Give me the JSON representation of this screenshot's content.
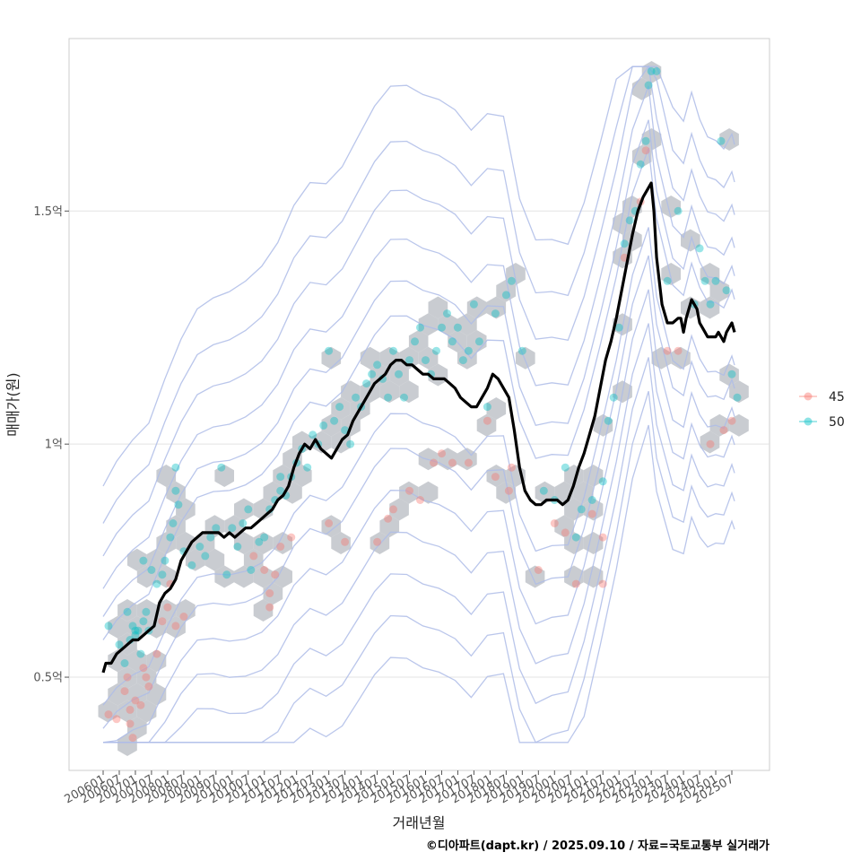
{
  "chart_data": {
    "type": "scatter",
    "xlabel": "거래년월",
    "ylabel": "매매가(원)",
    "caption": "©디아파트(dapt.kr) / 2025.09.10 / 자료=국토교통부 실거래가",
    "ylim": [
      0.3,
      1.87
    ],
    "y_ticks": [
      {
        "value": 0.5,
        "label": "0.5억"
      },
      {
        "value": 1.0,
        "label": "1억"
      },
      {
        "value": 1.5,
        "label": "1.5억"
      }
    ],
    "x_range_months": [
      0,
      236
    ],
    "x_ticks": [
      "200601",
      "200607",
      "200701",
      "200707",
      "200801",
      "200807",
      "200901",
      "200907",
      "201001",
      "201007",
      "201101",
      "201107",
      "201201",
      "201207",
      "201301",
      "201307",
      "201401",
      "201407",
      "201501",
      "201507",
      "201601",
      "201607",
      "201701",
      "201707",
      "201801",
      "201807",
      "201901",
      "201907",
      "202001",
      "202007",
      "202101",
      "202107",
      "202201",
      "202207",
      "202301",
      "202307",
      "202401",
      "202407",
      "202501",
      "202507"
    ],
    "x_tick_months": [
      0,
      6,
      12,
      18,
      24,
      30,
      36,
      42,
      48,
      54,
      60,
      66,
      72,
      78,
      84,
      90,
      96,
      102,
      108,
      114,
      120,
      126,
      132,
      138,
      144,
      150,
      156,
      162,
      168,
      174,
      180,
      186,
      192,
      198,
      204,
      210,
      216,
      222,
      228,
      234
    ],
    "legend": [
      {
        "name": "45",
        "color": "#F8766D"
      },
      {
        "name": "50",
        "color": "#00BFC4"
      }
    ],
    "series": [
      {
        "name": "45",
        "points": [
          [
            2,
            0.42
          ],
          [
            5,
            0.41
          ],
          [
            8,
            0.47
          ],
          [
            10,
            0.4
          ],
          [
            10,
            0.43
          ],
          [
            11,
            0.37
          ],
          [
            12,
            0.45
          ],
          [
            9,
            0.5
          ],
          [
            14,
            0.44
          ],
          [
            15,
            0.52
          ],
          [
            16,
            0.5
          ],
          [
            17,
            0.48
          ],
          [
            20,
            0.55
          ],
          [
            22,
            0.62
          ],
          [
            24,
            0.65
          ],
          [
            25,
            0.7
          ],
          [
            27,
            0.61
          ],
          [
            30,
            0.63
          ],
          [
            56,
            0.76
          ],
          [
            60,
            0.73
          ],
          [
            62,
            0.68
          ],
          [
            62,
            0.65
          ],
          [
            64,
            0.72
          ],
          [
            66,
            0.78
          ],
          [
            70,
            0.8
          ],
          [
            84,
            0.83
          ],
          [
            90,
            0.79
          ],
          [
            102,
            0.79
          ],
          [
            106,
            0.84
          ],
          [
            108,
            0.86
          ],
          [
            114,
            0.9
          ],
          [
            118,
            0.88
          ],
          [
            123,
            0.96
          ],
          [
            126,
            0.98
          ],
          [
            130,
            0.96
          ],
          [
            136,
            0.96
          ],
          [
            143,
            1.05
          ],
          [
            146,
            0.93
          ],
          [
            151,
            0.9
          ],
          [
            152,
            0.95
          ],
          [
            162,
            0.73
          ],
          [
            168,
            0.83
          ],
          [
            172,
            0.81
          ],
          [
            176,
            0.7
          ],
          [
            182,
            0.85
          ],
          [
            186,
            0.8
          ],
          [
            186,
            0.7
          ],
          [
            194,
            1.4
          ],
          [
            200,
            1.52
          ],
          [
            202,
            1.63
          ],
          [
            210,
            1.2
          ],
          [
            214,
            1.2
          ],
          [
            226,
            1.0
          ],
          [
            231,
            1.03
          ],
          [
            234,
            1.05
          ]
        ]
      },
      {
        "name": "50",
        "points": [
          [
            2,
            0.61
          ],
          [
            6,
            0.57
          ],
          [
            8,
            0.53
          ],
          [
            9,
            0.64
          ],
          [
            10,
            0.58
          ],
          [
            11,
            0.61
          ],
          [
            12,
            0.59
          ],
          [
            12,
            0.6
          ],
          [
            13,
            0.6
          ],
          [
            14,
            0.55
          ],
          [
            15,
            0.62
          ],
          [
            16,
            0.64
          ],
          [
            17,
            0.6
          ],
          [
            15,
            0.75
          ],
          [
            18,
            0.73
          ],
          [
            20,
            0.7
          ],
          [
            22,
            0.72
          ],
          [
            23,
            0.75
          ],
          [
            25,
            0.8
          ],
          [
            26,
            0.83
          ],
          [
            27,
            0.9
          ],
          [
            28,
            0.87
          ],
          [
            27,
            0.95
          ],
          [
            30,
            0.77
          ],
          [
            33,
            0.74
          ],
          [
            36,
            0.78
          ],
          [
            38,
            0.76
          ],
          [
            40,
            0.8
          ],
          [
            42,
            0.82
          ],
          [
            44,
            0.95
          ],
          [
            46,
            0.72
          ],
          [
            48,
            0.82
          ],
          [
            50,
            0.78
          ],
          [
            52,
            0.83
          ],
          [
            54,
            0.86
          ],
          [
            55,
            0.73
          ],
          [
            58,
            0.79
          ],
          [
            60,
            0.8
          ],
          [
            62,
            0.86
          ],
          [
            64,
            0.88
          ],
          [
            66,
            0.9
          ],
          [
            66,
            0.93
          ],
          [
            68,
            0.89
          ],
          [
            70,
            0.93
          ],
          [
            72,
            0.96
          ],
          [
            74,
            0.99
          ],
          [
            76,
            0.95
          ],
          [
            78,
            1.02
          ],
          [
            80,
            1.0
          ],
          [
            82,
            1.04
          ],
          [
            84,
            1.2
          ],
          [
            86,
            1.05
          ],
          [
            88,
            1.08
          ],
          [
            90,
            1.03
          ],
          [
            92,
            1.0
          ],
          [
            94,
            1.1
          ],
          [
            96,
            1.08
          ],
          [
            98,
            1.13
          ],
          [
            100,
            1.15
          ],
          [
            102,
            1.17
          ],
          [
            104,
            1.14
          ],
          [
            106,
            1.1
          ],
          [
            108,
            1.2
          ],
          [
            110,
            1.15
          ],
          [
            112,
            1.1
          ],
          [
            114,
            1.18
          ],
          [
            116,
            1.22
          ],
          [
            118,
            1.25
          ],
          [
            120,
            1.18
          ],
          [
            122,
            1.15
          ],
          [
            124,
            1.2
          ],
          [
            126,
            1.25
          ],
          [
            128,
            1.28
          ],
          [
            130,
            1.22
          ],
          [
            132,
            1.25
          ],
          [
            134,
            1.18
          ],
          [
            136,
            1.2
          ],
          [
            138,
            1.3
          ],
          [
            140,
            1.22
          ],
          [
            143,
            1.08
          ],
          [
            146,
            1.28
          ],
          [
            150,
            1.32
          ],
          [
            152,
            1.35
          ],
          [
            156,
            1.2
          ],
          [
            164,
            0.9
          ],
          [
            168,
            0.88
          ],
          [
            172,
            0.95
          ],
          [
            176,
            0.8
          ],
          [
            178,
            0.86
          ],
          [
            182,
            0.88
          ],
          [
            186,
            0.92
          ],
          [
            188,
            1.05
          ],
          [
            190,
            1.1
          ],
          [
            192,
            1.25
          ],
          [
            194,
            1.43
          ],
          [
            196,
            1.48
          ],
          [
            198,
            1.5
          ],
          [
            200,
            1.6
          ],
          [
            202,
            1.65
          ],
          [
            203,
            1.77
          ],
          [
            204,
            1.8
          ],
          [
            206,
            1.8
          ],
          [
            210,
            1.35
          ],
          [
            214,
            1.5
          ],
          [
            220,
            1.3
          ],
          [
            222,
            1.42
          ],
          [
            224,
            1.35
          ],
          [
            226,
            1.3
          ],
          [
            228,
            1.35
          ],
          [
            230,
            1.65
          ],
          [
            232,
            1.33
          ],
          [
            234,
            1.15
          ],
          [
            236,
            1.1
          ]
        ]
      }
    ],
    "trend_line": [
      [
        0,
        0.51
      ],
      [
        1,
        0.53
      ],
      [
        3,
        0.53
      ],
      [
        5,
        0.55
      ],
      [
        7,
        0.56
      ],
      [
        9,
        0.57
      ],
      [
        11,
        0.58
      ],
      [
        13,
        0.58
      ],
      [
        15,
        0.59
      ],
      [
        17,
        0.6
      ],
      [
        19,
        0.61
      ],
      [
        21,
        0.66
      ],
      [
        23,
        0.68
      ],
      [
        25,
        0.69
      ],
      [
        27,
        0.71
      ],
      [
        29,
        0.75
      ],
      [
        31,
        0.77
      ],
      [
        33,
        0.79
      ],
      [
        35,
        0.8
      ],
      [
        37,
        0.81
      ],
      [
        39,
        0.81
      ],
      [
        41,
        0.81
      ],
      [
        43,
        0.81
      ],
      [
        45,
        0.8
      ],
      [
        47,
        0.81
      ],
      [
        49,
        0.8
      ],
      [
        51,
        0.81
      ],
      [
        53,
        0.82
      ],
      [
        55,
        0.82
      ],
      [
        57,
        0.83
      ],
      [
        59,
        0.84
      ],
      [
        61,
        0.85
      ],
      [
        63,
        0.86
      ],
      [
        65,
        0.88
      ],
      [
        67,
        0.89
      ],
      [
        69,
        0.91
      ],
      [
        71,
        0.95
      ],
      [
        73,
        0.98
      ],
      [
        75,
        1.0
      ],
      [
        77,
        0.99
      ],
      [
        79,
        1.01
      ],
      [
        81,
        0.99
      ],
      [
        83,
        0.98
      ],
      [
        85,
        0.97
      ],
      [
        87,
        0.99
      ],
      [
        89,
        1.01
      ],
      [
        91,
        1.02
      ],
      [
        93,
        1.05
      ],
      [
        95,
        1.07
      ],
      [
        97,
        1.09
      ],
      [
        99,
        1.11
      ],
      [
        101,
        1.13
      ],
      [
        103,
        1.14
      ],
      [
        105,
        1.15
      ],
      [
        107,
        1.17
      ],
      [
        109,
        1.18
      ],
      [
        111,
        1.18
      ],
      [
        113,
        1.17
      ],
      [
        115,
        1.17
      ],
      [
        117,
        1.16
      ],
      [
        119,
        1.15
      ],
      [
        121,
        1.15
      ],
      [
        123,
        1.14
      ],
      [
        125,
        1.14
      ],
      [
        127,
        1.14
      ],
      [
        129,
        1.13
      ],
      [
        131,
        1.12
      ],
      [
        133,
        1.1
      ],
      [
        135,
        1.09
      ],
      [
        137,
        1.08
      ],
      [
        139,
        1.08
      ],
      [
        141,
        1.1
      ],
      [
        143,
        1.12
      ],
      [
        145,
        1.15
      ],
      [
        147,
        1.14
      ],
      [
        149,
        1.12
      ],
      [
        151,
        1.1
      ],
      [
        153,
        1.03
      ],
      [
        155,
        0.95
      ],
      [
        157,
        0.9
      ],
      [
        159,
        0.88
      ],
      [
        161,
        0.87
      ],
      [
        163,
        0.87
      ],
      [
        165,
        0.88
      ],
      [
        167,
        0.88
      ],
      [
        169,
        0.88
      ],
      [
        171,
        0.87
      ],
      [
        173,
        0.88
      ],
      [
        175,
        0.91
      ],
      [
        177,
        0.95
      ],
      [
        179,
        0.98
      ],
      [
        181,
        1.02
      ],
      [
        183,
        1.06
      ],
      [
        185,
        1.12
      ],
      [
        187,
        1.18
      ],
      [
        189,
        1.22
      ],
      [
        191,
        1.27
      ],
      [
        193,
        1.33
      ],
      [
        195,
        1.39
      ],
      [
        197,
        1.45
      ],
      [
        199,
        1.5
      ],
      [
        201,
        1.53
      ],
      [
        203,
        1.55
      ],
      [
        204,
        1.56
      ],
      [
        205,
        1.5
      ],
      [
        206,
        1.4
      ],
      [
        208,
        1.3
      ],
      [
        210,
        1.26
      ],
      [
        212,
        1.26
      ],
      [
        214,
        1.27
      ],
      [
        215,
        1.27
      ],
      [
        216,
        1.24
      ],
      [
        217,
        1.27
      ],
      [
        218,
        1.29
      ],
      [
        219,
        1.31
      ],
      [
        220,
        1.3
      ],
      [
        221,
        1.29
      ],
      [
        222,
        1.26
      ],
      [
        223,
        1.25
      ],
      [
        224,
        1.24
      ],
      [
        225,
        1.23
      ],
      [
        226,
        1.23
      ],
      [
        227,
        1.23
      ],
      [
        228,
        1.23
      ],
      [
        229,
        1.24
      ],
      [
        230,
        1.23
      ],
      [
        231,
        1.22
      ],
      [
        232,
        1.24
      ],
      [
        233,
        1.25
      ],
      [
        234,
        1.26
      ],
      [
        235,
        1.24
      ]
    ]
  }
}
